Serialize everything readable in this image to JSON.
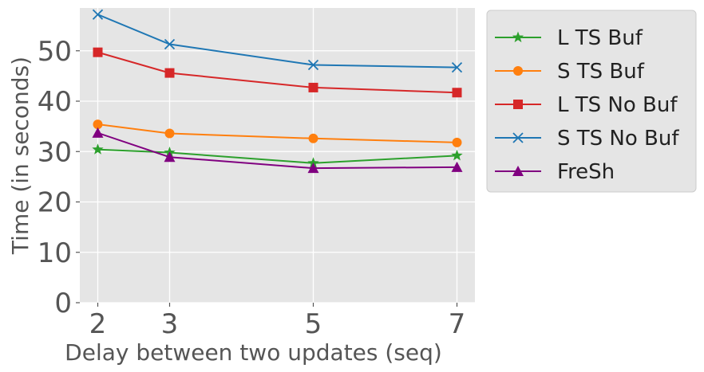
{
  "chart_data": {
    "type": "line",
    "title": "",
    "xlabel": "Delay between two updates (seq)",
    "ylabel": "Time (in seconds)",
    "x": [
      2,
      3,
      5,
      7
    ],
    "xlim": [
      1.75,
      7.25
    ],
    "ylim": [
      0,
      58.5
    ],
    "xticks": [
      2,
      3,
      5,
      7
    ],
    "yticks": [
      0,
      10,
      20,
      30,
      40,
      50
    ],
    "grid": true,
    "legend_position": "outside-right",
    "series": [
      {
        "name": "L TS Buf",
        "values": [
          30.4,
          29.8,
          27.7,
          29.2
        ],
        "color": "#2ca02c",
        "marker": "star"
      },
      {
        "name": "S TS Buf",
        "values": [
          35.4,
          33.6,
          32.6,
          31.8
        ],
        "color": "#ff7f0e",
        "marker": "circle"
      },
      {
        "name": "L TS No Buf",
        "values": [
          49.7,
          45.6,
          42.7,
          41.7
        ],
        "color": "#d62728",
        "marker": "square"
      },
      {
        "name": "S TS No Buf",
        "values": [
          57.2,
          51.3,
          47.2,
          46.7
        ],
        "color": "#1f77b4",
        "marker": "x"
      },
      {
        "name": "FreSh",
        "values": [
          33.7,
          28.9,
          26.7,
          26.9
        ],
        "color": "#800080",
        "marker": "triangle"
      }
    ]
  }
}
